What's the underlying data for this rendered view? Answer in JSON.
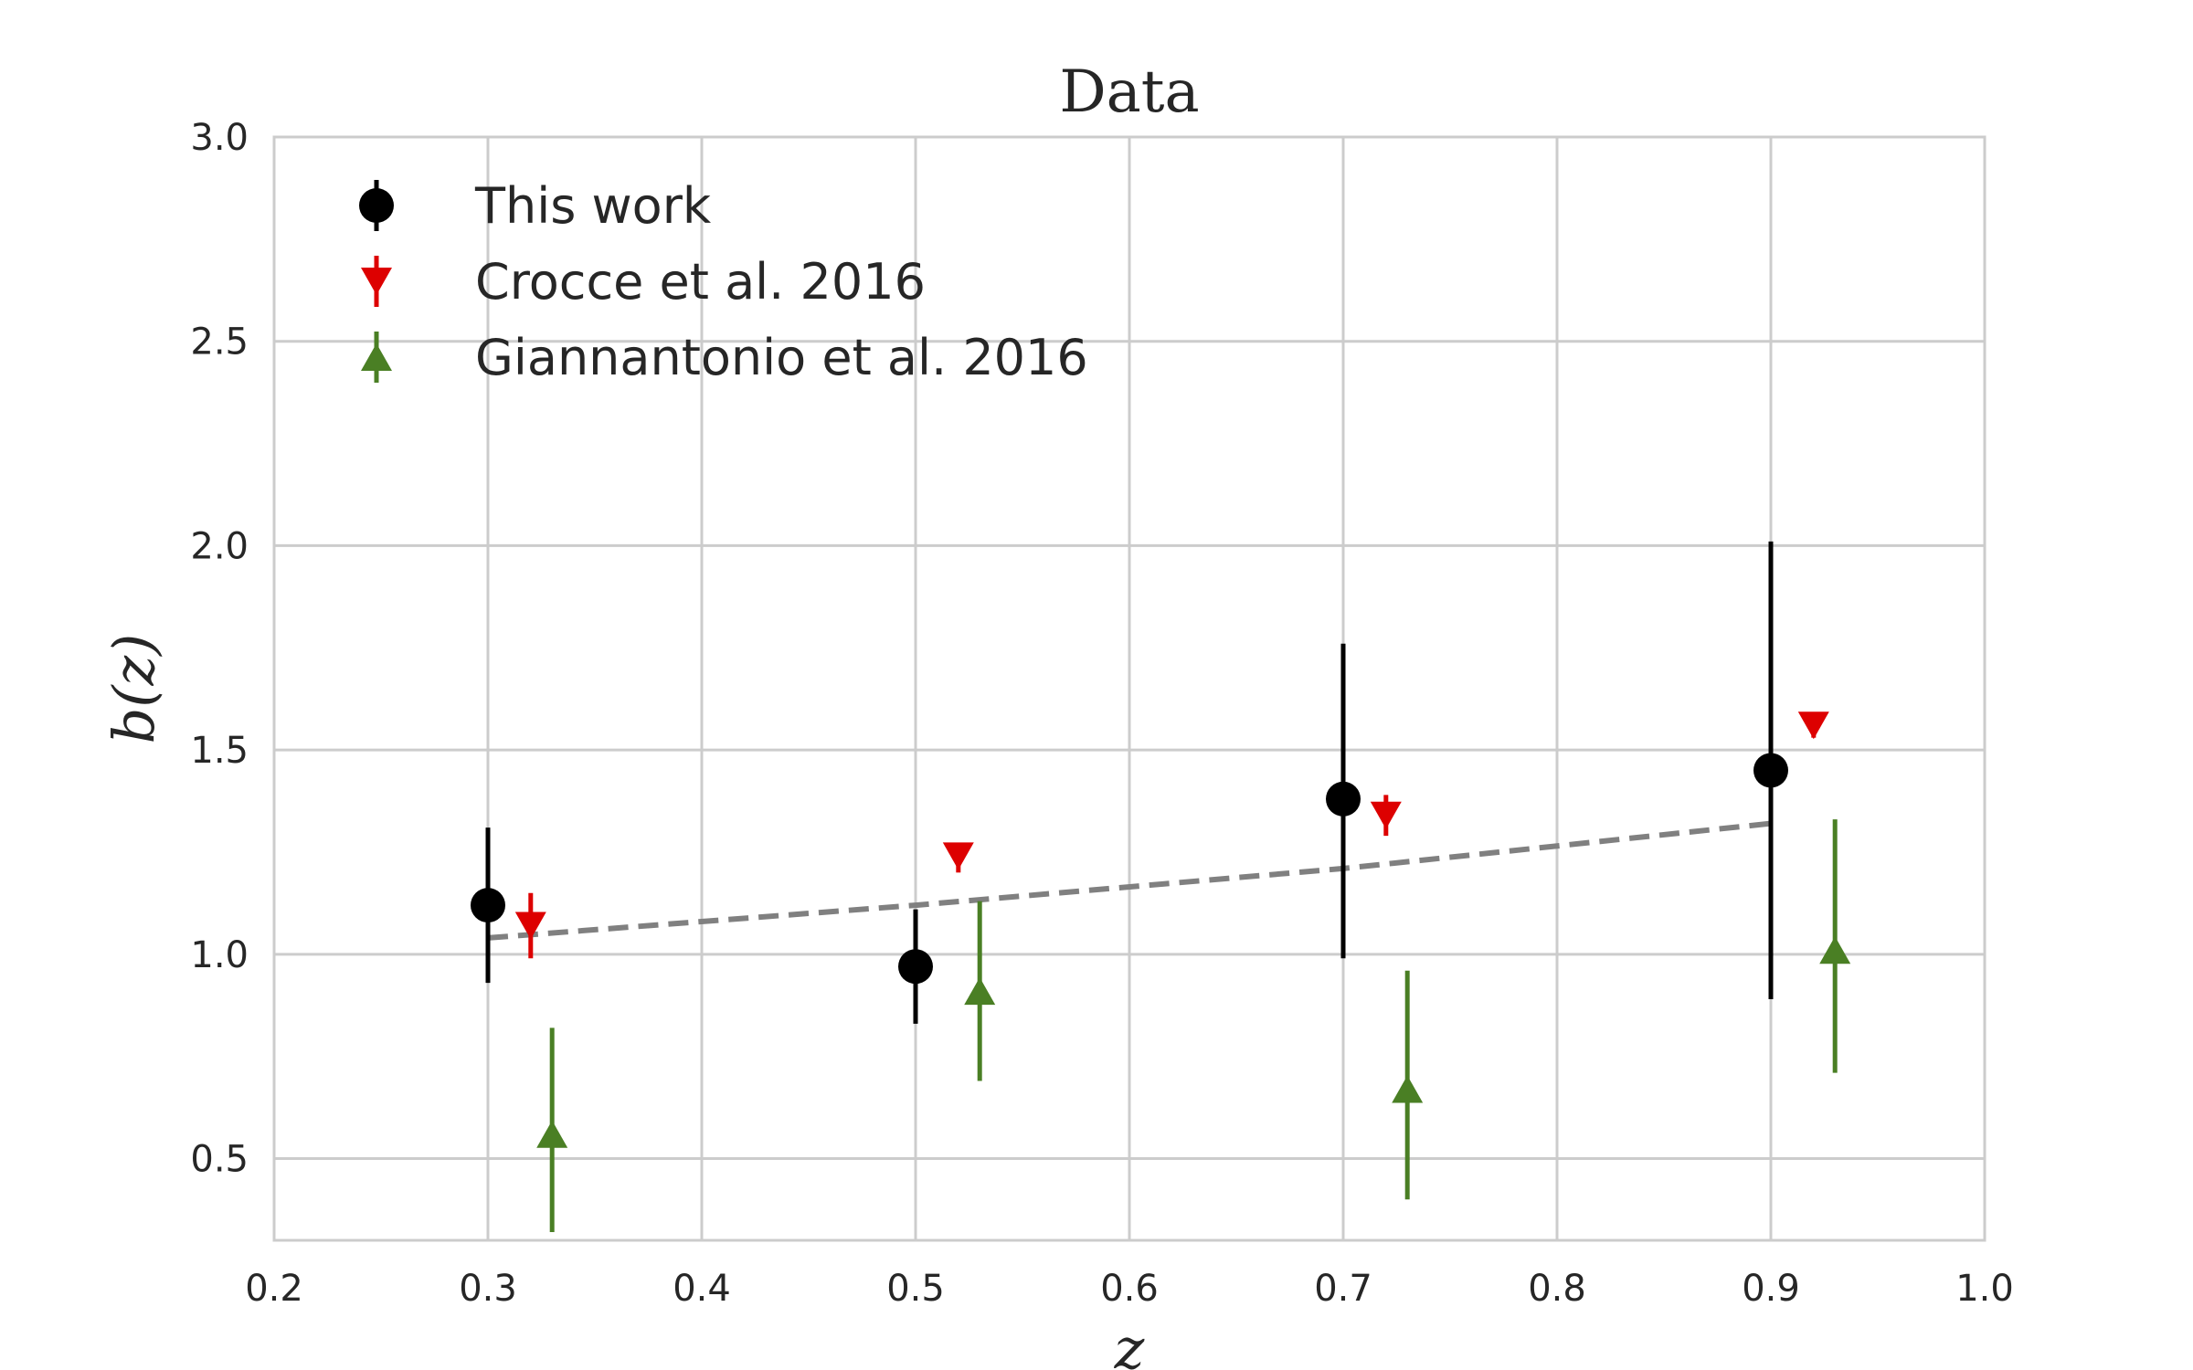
{
  "chart_data": {
    "type": "scatter",
    "title": "Data",
    "xlabel": "z",
    "ylabel": "b(z)",
    "xlim": [
      0.2,
      1.0
    ],
    "ylim": [
      0.3,
      3.0
    ],
    "xticks": [
      0.2,
      0.3,
      0.4,
      0.5,
      0.6,
      0.7,
      0.8,
      0.9,
      1.0
    ],
    "xtick_labels": [
      "0.2",
      "0.3",
      "0.4",
      "0.5",
      "0.6",
      "0.7",
      "0.8",
      "0.9",
      "1.0"
    ],
    "yticks": [
      0.5,
      1.0,
      1.5,
      2.0,
      2.5,
      3.0
    ],
    "ytick_labels": [
      "0.5",
      "1.0",
      "1.5",
      "2.0",
      "2.5",
      "3.0"
    ],
    "grid": true,
    "legend_position": "top-left",
    "series": [
      {
        "name": "This work",
        "marker": "circle",
        "color": "#000000",
        "points": [
          {
            "x": 0.3,
            "y": 1.12,
            "yerr_low": 0.93,
            "yerr_high": 1.31
          },
          {
            "x": 0.5,
            "y": 0.97,
            "yerr_low": 0.83,
            "yerr_high": 1.11
          },
          {
            "x": 0.7,
            "y": 1.38,
            "yerr_low": 0.99,
            "yerr_high": 1.76
          },
          {
            "x": 0.9,
            "y": 1.45,
            "yerr_low": 0.89,
            "yerr_high": 2.01
          }
        ]
      },
      {
        "name": "Crocce et al. 2016",
        "marker": "triangle-down",
        "color": "#dd0000",
        "points": [
          {
            "x": 0.32,
            "y": 1.07,
            "yerr_low": 0.99,
            "yerr_high": 1.15
          },
          {
            "x": 0.52,
            "y": 1.24,
            "yerr_low": 1.2,
            "yerr_high": 1.27
          },
          {
            "x": 0.72,
            "y": 1.34,
            "yerr_low": 1.29,
            "yerr_high": 1.39
          },
          {
            "x": 0.92,
            "y": 1.56,
            "yerr_low": 1.53,
            "yerr_high": 1.58
          }
        ]
      },
      {
        "name": "Giannantonio et al. 2016",
        "marker": "triangle-up",
        "color": "#4a7f24",
        "points": [
          {
            "x": 0.33,
            "y": 0.56,
            "yerr_low": 0.32,
            "yerr_high": 0.82
          },
          {
            "x": 0.53,
            "y": 0.91,
            "yerr_low": 0.69,
            "yerr_high": 1.13
          },
          {
            "x": 0.73,
            "y": 0.67,
            "yerr_low": 0.4,
            "yerr_high": 0.96
          },
          {
            "x": 0.93,
            "y": 1.01,
            "yerr_low": 0.71,
            "yerr_high": 1.33
          }
        ]
      }
    ],
    "reference_line": {
      "style": "dashed",
      "color": "#808080",
      "points": [
        [
          0.3,
          1.04
        ],
        [
          0.5,
          1.12
        ],
        [
          0.7,
          1.21
        ],
        [
          0.9,
          1.32
        ]
      ]
    }
  }
}
